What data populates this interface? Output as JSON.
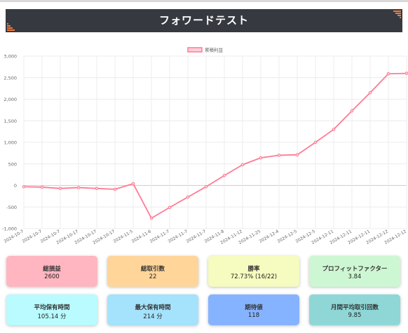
{
  "header": {
    "title": "フォワードテスト"
  },
  "colors": {
    "header_bg": "#363a40",
    "accent": "#f07a3a",
    "line": "#ff7b95",
    "grid": "#ececec"
  },
  "chart_data": {
    "type": "line",
    "title": "",
    "xlabel": "",
    "ylabel": "",
    "legend": {
      "label": "累積利益",
      "position": "top-center"
    },
    "ylim": [
      -1000,
      3000
    ],
    "yticks": [
      "-1,000",
      "-500",
      "0",
      "500",
      "1,000",
      "1,500",
      "2,000",
      "2,500",
      "3,000"
    ],
    "ytick_values": [
      -1000,
      -500,
      0,
      500,
      1000,
      1500,
      2000,
      2500,
      3000
    ],
    "categories": [
      "2024-10-7",
      "2024-10-7",
      "2024-10-7",
      "2024-10-17",
      "2024-10-17",
      "2024-10-17",
      "2024-11-5",
      "2024-11-6",
      "2024-11-7",
      "2024-11-7",
      "2024-11-7",
      "2024-11-8",
      "2024-11-12",
      "2024-11-25",
      "2024-12-4",
      "2024-12-5",
      "2024-12-5",
      "2024-12-11",
      "2024-12-11",
      "2024-12-11",
      "2024-12-12",
      "2024-12-12"
    ],
    "series": [
      {
        "name": "累積利益",
        "values": [
          -30,
          -40,
          -70,
          -50,
          -70,
          -90,
          40,
          -760,
          -510,
          -270,
          -30,
          230,
          480,
          640,
          700,
          710,
          1000,
          1300,
          1730,
          2150,
          2590,
          2600
        ]
      }
    ],
    "grid": true
  },
  "stats": [
    {
      "label": "総損益",
      "value": "2600",
      "color": "#ffb6c1"
    },
    {
      "label": "総取引数",
      "value": "22",
      "color": "#ffd59a"
    },
    {
      "label": "勝率",
      "value": "72.73% (16/22)",
      "color": "#f6fbbf"
    },
    {
      "label": "プロフィットファクター",
      "value": "3.84",
      "color": "#cdf7d2"
    },
    {
      "label": "平均保有時間",
      "value": "105.14 分",
      "color": "#b9fbff"
    },
    {
      "label": "最大保有時間",
      "value": "214 分",
      "color": "#a5e2fb"
    },
    {
      "label": "期待値",
      "value": "118",
      "color": "#86b3ff"
    },
    {
      "label": "月間平均取引回数",
      "value": "9.85",
      "color": "#8fd7d7"
    }
  ]
}
